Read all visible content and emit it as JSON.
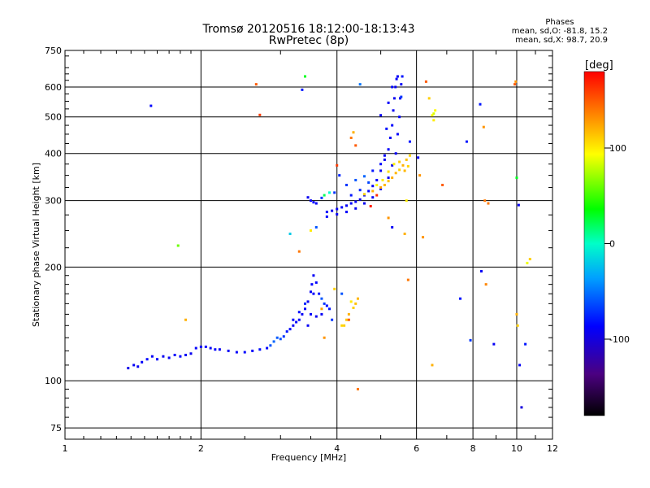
{
  "chart_data": {
    "type": "scatter",
    "title": "Tromsø 20120516 18:12:00-18:13:43",
    "subtitle": "RwPretec (8p)",
    "xlabel": "Frequency [MHz]",
    "ylabel": "Stationary phase Virtual Height [km]",
    "xscale": "log",
    "yscale": "log",
    "xlim": [
      1,
      12
    ],
    "ylim": [
      70,
      750
    ],
    "x_ticks": [
      1,
      2,
      4,
      6,
      8,
      10,
      12
    ],
    "y_ticks": [
      75,
      100,
      200,
      300,
      400,
      500,
      600,
      750
    ],
    "grid": true,
    "colorbar": {
      "label": "[deg]",
      "range": [
        -180,
        180
      ],
      "ticks": [
        100,
        0,
        -100
      ],
      "colormap": "rainbow"
    },
    "stats": {
      "heading": "Phases",
      "line_o": "mean, sd,O: -81.8, 15.2",
      "line_x": "mean, sd,X: 98.7, 20.9"
    },
    "series": [
      {
        "values": [
          [
            1.38,
            108,
            -95
          ],
          [
            1.42,
            110,
            -90
          ],
          [
            1.45,
            109,
            -92
          ],
          [
            1.48,
            112,
            -88
          ],
          [
            1.52,
            114,
            -85
          ],
          [
            1.56,
            116,
            -90
          ],
          [
            1.6,
            114,
            -86
          ],
          [
            1.65,
            116,
            -92
          ],
          [
            1.7,
            115,
            -90
          ],
          [
            1.75,
            117,
            -88
          ],
          [
            1.8,
            116,
            -85
          ],
          [
            1.85,
            117,
            -90
          ],
          [
            1.9,
            118,
            -92
          ],
          [
            1.95,
            122,
            -88
          ],
          [
            2.0,
            123,
            -90
          ],
          [
            2.05,
            123,
            -87
          ],
          [
            2.1,
            122,
            -90
          ],
          [
            2.15,
            121,
            -86
          ],
          [
            2.2,
            121,
            -92
          ],
          [
            2.3,
            120,
            -90
          ],
          [
            2.4,
            119,
            -88
          ],
          [
            2.5,
            119,
            -85
          ],
          [
            2.6,
            120,
            -88
          ],
          [
            2.7,
            121,
            -82
          ],
          [
            2.8,
            122,
            -85
          ],
          [
            2.85,
            124,
            -60
          ],
          [
            2.9,
            127,
            -55
          ],
          [
            2.95,
            130,
            -58
          ],
          [
            3.0,
            129,
            -62
          ],
          [
            3.05,
            131,
            -70
          ],
          [
            3.1,
            135,
            -80
          ],
          [
            3.15,
            137,
            -85
          ],
          [
            3.2,
            140,
            -90
          ],
          [
            3.25,
            143,
            -88
          ],
          [
            3.3,
            145,
            -85
          ],
          [
            3.35,
            150,
            -90
          ],
          [
            3.4,
            155,
            -88
          ],
          [
            3.45,
            162,
            -92
          ],
          [
            3.5,
            172,
            -90
          ],
          [
            3.52,
            180,
            -86
          ],
          [
            3.55,
            190,
            -90
          ],
          [
            3.6,
            182,
            -85
          ],
          [
            3.65,
            170,
            -80
          ],
          [
            3.7,
            165,
            -60
          ],
          [
            3.75,
            160,
            -70
          ],
          [
            3.8,
            158,
            -85
          ],
          [
            3.85,
            155,
            -80
          ],
          [
            3.4,
            160,
            -75
          ],
          [
            3.5,
            150,
            -88
          ],
          [
            3.6,
            148,
            -92
          ],
          [
            3.7,
            150,
            -90
          ],
          [
            3.3,
            152,
            -82
          ],
          [
            3.55,
            170,
            -88
          ],
          [
            3.2,
            145,
            -86
          ],
          [
            3.45,
            140,
            -90
          ]
        ]
      },
      {
        "values": [
          [
            3.45,
            306,
            -92
          ],
          [
            3.5,
            300,
            -90
          ],
          [
            3.55,
            297,
            -88
          ],
          [
            3.6,
            295,
            -90
          ],
          [
            3.8,
            280,
            -88
          ],
          [
            3.9,
            282,
            -92
          ],
          [
            4.0,
            285,
            -90
          ],
          [
            4.1,
            288,
            -86
          ],
          [
            4.2,
            291,
            -90
          ],
          [
            4.3,
            295,
            -88
          ],
          [
            4.4,
            298,
            -90
          ],
          [
            4.5,
            302,
            -92
          ],
          [
            4.6,
            310,
            -90
          ],
          [
            4.7,
            318,
            -88
          ],
          [
            4.8,
            328,
            -90
          ],
          [
            4.9,
            340,
            -86
          ],
          [
            5.0,
            360,
            -90
          ],
          [
            5.1,
            385,
            -92
          ],
          [
            5.2,
            410,
            -88
          ],
          [
            5.25,
            440,
            -90
          ],
          [
            5.3,
            475,
            -86
          ],
          [
            5.33,
            520,
            -90
          ],
          [
            5.36,
            560,
            -92
          ],
          [
            5.39,
            600,
            -90
          ],
          [
            5.42,
            630,
            -88
          ],
          [
            5.45,
            640,
            -90
          ],
          [
            3.8,
            272,
            -85
          ],
          [
            4.0,
            276,
            -90
          ],
          [
            4.2,
            280,
            -88
          ],
          [
            4.4,
            286,
            -90
          ],
          [
            4.6,
            295,
            -92
          ],
          [
            4.8,
            306,
            -90
          ],
          [
            5.0,
            322,
            -88
          ],
          [
            5.2,
            345,
            -90
          ],
          [
            5.3,
            372,
            -92
          ],
          [
            5.4,
            400,
            -90
          ],
          [
            5.45,
            450,
            -88
          ],
          [
            5.5,
            500,
            -86
          ],
          [
            5.52,
            560,
            -90
          ],
          [
            5.55,
            610,
            -88
          ],
          [
            4.2,
            330,
            -70
          ],
          [
            4.4,
            340,
            -60
          ],
          [
            4.6,
            348,
            -55
          ],
          [
            4.8,
            360,
            -80
          ],
          [
            5.0,
            375,
            -85
          ],
          [
            5.1,
            395,
            -88
          ],
          [
            5.0,
            505,
            -90
          ],
          [
            5.2,
            545,
            -88
          ],
          [
            5.3,
            600,
            -85
          ],
          [
            5.58,
            640,
            -80
          ],
          [
            4.5,
            320,
            -75
          ],
          [
            4.7,
            335,
            -65
          ],
          [
            4.3,
            310,
            -80
          ],
          [
            3.95,
            315,
            -70
          ],
          [
            5.15,
            465,
            -82
          ]
        ]
      },
      {
        "values": [
          [
            4.6,
            312,
            110
          ],
          [
            4.8,
            318,
            120
          ],
          [
            5.0,
            325,
            125
          ],
          [
            5.1,
            330,
            118
          ],
          [
            5.2,
            338,
            115
          ],
          [
            5.3,
            345,
            122
          ],
          [
            5.4,
            355,
            118
          ],
          [
            5.5,
            362,
            110
          ],
          [
            5.6,
            372,
            120
          ],
          [
            5.7,
            385,
            115
          ],
          [
            5.8,
            395,
            108
          ],
          [
            4.9,
            330,
            95
          ],
          [
            5.05,
            340,
            100
          ],
          [
            5.2,
            358,
            105
          ],
          [
            5.35,
            375,
            98
          ],
          [
            5.5,
            380,
            112
          ],
          [
            5.65,
            360,
            118
          ],
          [
            5.75,
            370,
            108
          ],
          [
            4.35,
            156,
            110
          ],
          [
            4.4,
            160,
            115
          ],
          [
            4.45,
            165,
            118
          ],
          [
            4.25,
            150,
            120
          ],
          [
            4.2,
            145,
            112
          ],
          [
            4.1,
            140,
            108
          ],
          [
            4.3,
            162,
            100
          ]
        ]
      },
      {
        "values": [
          [
            1.55,
            535,
            -85
          ],
          [
            1.78,
            228,
            60
          ],
          [
            1.85,
            145,
            120
          ],
          [
            2.65,
            610,
            150
          ],
          [
            2.7,
            506,
            160
          ],
          [
            3.4,
            640,
            30
          ],
          [
            3.35,
            590,
            -80
          ],
          [
            3.15,
            245,
            -20
          ],
          [
            3.3,
            220,
            140
          ],
          [
            3.5,
            250,
            100
          ],
          [
            3.6,
            255,
            -60
          ],
          [
            3.7,
            305,
            -70
          ],
          [
            3.75,
            310,
            20
          ],
          [
            3.85,
            315,
            0
          ],
          [
            3.7,
            155,
            125
          ],
          [
            3.75,
            130,
            130
          ],
          [
            3.9,
            145,
            -70
          ],
          [
            3.95,
            175,
            110
          ],
          [
            4.0,
            372,
            160
          ],
          [
            4.05,
            350,
            -75
          ],
          [
            4.1,
            170,
            -60
          ],
          [
            4.15,
            140,
            110
          ],
          [
            4.25,
            145,
            150
          ],
          [
            4.3,
            440,
            140
          ],
          [
            4.35,
            455,
            120
          ],
          [
            4.4,
            420,
            150
          ],
          [
            4.45,
            95,
            140
          ],
          [
            4.5,
            610,
            -50
          ],
          [
            4.75,
            290,
            170
          ],
          [
            4.9,
            310,
            165
          ],
          [
            5.2,
            270,
            130
          ],
          [
            5.3,
            255,
            -90
          ],
          [
            5.55,
            565,
            -70
          ],
          [
            5.65,
            245,
            120
          ],
          [
            5.7,
            300,
            100
          ],
          [
            5.75,
            185,
            140
          ],
          [
            5.8,
            430,
            -80
          ],
          [
            6.05,
            390,
            -90
          ],
          [
            6.1,
            350,
            130
          ],
          [
            6.2,
            240,
            130
          ],
          [
            6.3,
            620,
            150
          ],
          [
            6.5,
            505,
            95
          ],
          [
            6.55,
            510,
            85
          ],
          [
            6.6,
            520,
            95
          ],
          [
            6.55,
            490,
            100
          ],
          [
            6.4,
            560,
            110
          ],
          [
            6.5,
            110,
            120
          ],
          [
            6.85,
            330,
            150
          ],
          [
            7.5,
            165,
            -80
          ],
          [
            7.75,
            430,
            -80
          ],
          [
            7.9,
            128,
            -70
          ],
          [
            8.3,
            540,
            -80
          ],
          [
            8.35,
            195,
            -90
          ],
          [
            8.45,
            470,
            130
          ],
          [
            8.5,
            300,
            140
          ],
          [
            8.55,
            180,
            135
          ],
          [
            8.65,
            295,
            140
          ],
          [
            8.9,
            125,
            -90
          ],
          [
            9.9,
            610,
            150
          ],
          [
            9.95,
            620,
            130
          ],
          [
            10.0,
            345,
            30
          ],
          [
            10.0,
            150,
            120
          ],
          [
            10.05,
            140,
            110
          ],
          [
            10.1,
            292,
            -90
          ],
          [
            10.15,
            110,
            -90
          ],
          [
            10.25,
            85,
            -100
          ],
          [
            10.45,
            125,
            -80
          ],
          [
            10.55,
            205,
            90
          ],
          [
            10.7,
            210,
            110
          ]
        ]
      }
    ]
  }
}
